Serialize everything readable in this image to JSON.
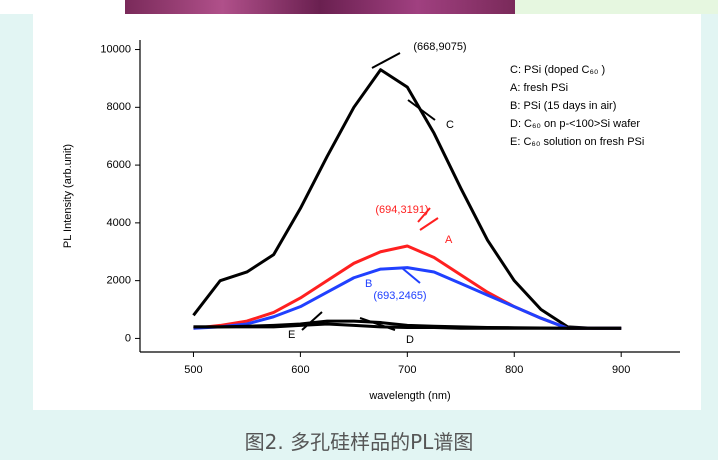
{
  "chart_data": {
    "type": "line",
    "x_label": "wavelength (nm)",
    "y_label": "PL Intensity (arb.unit)",
    "x": [
      500,
      525,
      550,
      575,
      600,
      625,
      650,
      675,
      700,
      725,
      750,
      775,
      800,
      825,
      850,
      875,
      900
    ],
    "series": [
      {
        "name": "C: PSi (doped C₆₀ )",
        "color": "#000000",
        "values": [
          800,
          2000,
          2300,
          2900,
          4500,
          6300,
          8000,
          9300,
          8700,
          7100,
          5200,
          3400,
          2000,
          1000,
          400,
          350,
          350
        ]
      },
      {
        "name": "A: fresh PSi",
        "color": "#ff2020",
        "values": [
          350,
          450,
          600,
          900,
          1400,
          2000,
          2600,
          3000,
          3200,
          2800,
          2200,
          1600,
          1100,
          700,
          350,
          350,
          350
        ]
      },
      {
        "name": "B: PSi (15 days in air)",
        "color": "#2040ff",
        "values": [
          350,
          400,
          500,
          750,
          1100,
          1600,
          2100,
          2400,
          2450,
          2300,
          1900,
          1500,
          1100,
          700,
          350,
          350,
          350
        ]
      },
      {
        "name": "D: C₆₀  on p-<100>Si wafer",
        "color": "#000000",
        "values": [
          400,
          400,
          400,
          400,
          450,
          500,
          450,
          400,
          380,
          380,
          350,
          350,
          350,
          350,
          350,
          350,
          350
        ]
      },
      {
        "name": "E: C₆₀  solution on fresh PSi",
        "color": "#000000",
        "values": [
          400,
          400,
          420,
          450,
          500,
          600,
          600,
          550,
          450,
          420,
          400,
          380,
          370,
          360,
          350,
          350,
          350
        ]
      }
    ],
    "annotations": [
      {
        "text": "(668,9075)",
        "color": "#000000"
      },
      {
        "text": "(694,3191)",
        "color": "#ff2020"
      },
      {
        "text": "(693,2465)",
        "color": "#2040ff"
      },
      {
        "text": "C",
        "color": "#000000"
      },
      {
        "text": "A",
        "color": "#ff2020"
      },
      {
        "text": "B",
        "color": "#2040ff"
      },
      {
        "text": "D",
        "color": "#000000"
      },
      {
        "text": "E",
        "color": "#000000"
      }
    ],
    "legend": "upper right",
    "xlim": [
      450,
      955
    ],
    "ylim": [
      -470,
      10330
    ],
    "xticks": [
      500,
      600,
      700,
      800,
      900
    ],
    "yticks": [
      0,
      2000,
      4000,
      6000,
      8000,
      10000
    ]
  },
  "caption": "图2. 多孔硅样品的PL谱图"
}
